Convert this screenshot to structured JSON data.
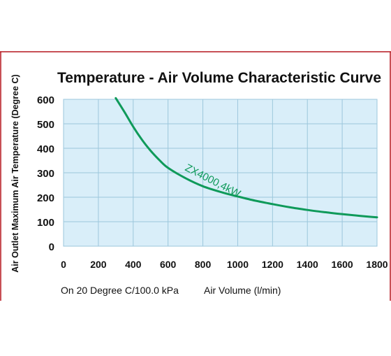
{
  "colors": {
    "border": "#b5161e",
    "plot_background": "#d9eef9",
    "grid": "#9cc7dc",
    "curve": "#0f9a5a",
    "text": "#111111"
  },
  "chart_data": {
    "type": "line",
    "title": "Temperature - Air Volume Characteristic Curve",
    "xlabel": "Air Volume (l/min)",
    "ylabel": "Air Outlet Maximum Air Temperature (Degree C)",
    "footnote": "On 20 Degree C/100.0 kPa",
    "xlim": [
      0,
      1800
    ],
    "ylim": [
      0,
      600
    ],
    "x_ticks": [
      "0",
      "200",
      "400",
      "600",
      "800",
      "1000",
      "1200",
      "1400",
      "1600",
      "1800"
    ],
    "y_ticks": [
      "0",
      "100",
      "200",
      "300",
      "400",
      "500",
      "600"
    ],
    "grid": true,
    "series": [
      {
        "name": "ZX4000,4kW",
        "x": [
          300,
          350,
          400,
          450,
          500,
          550,
          600,
          700,
          800,
          900,
          1000,
          1100,
          1200,
          1300,
          1400,
          1500,
          1600,
          1700,
          1800
        ],
        "y": [
          605,
          548,
          488,
          435,
          390,
          352,
          320,
          278,
          245,
          222,
          203,
          186,
          172,
          159,
          148,
          139,
          131,
          124,
          118
        ]
      }
    ]
  }
}
